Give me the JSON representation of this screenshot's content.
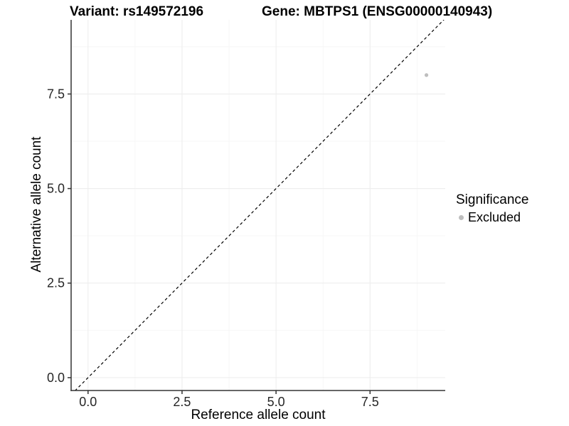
{
  "figure": {
    "title_left": "Variant: rs149572196",
    "title_right": "Gene: MBTPS1 (ENSG00000140943)"
  },
  "axes": {
    "x_label": "Reference allele count",
    "y_label": "Alternative allele count"
  },
  "legend": {
    "title": "Significance",
    "items": [
      {
        "label": "Excluded",
        "color": "#bebebe",
        "marker": "circle"
      }
    ]
  },
  "colors": {
    "point": "#bebebe",
    "grid_major": "#ececec",
    "grid_minor": "#f5f5f5",
    "axis_line": "#333333",
    "tick_mark": "#333333",
    "dashed_line": "#000000"
  },
  "chart_data": {
    "type": "scatter",
    "title": "Variant: rs149572196 | Gene: MBTPS1 (ENSG00000140943)",
    "xlabel": "Reference allele count",
    "ylabel": "Alternative allele count",
    "xlim": [
      -0.45,
      9.5
    ],
    "ylim": [
      -0.34,
      9.46
    ],
    "x_ticks": [
      0.0,
      2.5,
      5.0,
      7.5
    ],
    "y_ticks": [
      0.0,
      2.5,
      5.0,
      7.5
    ],
    "x_tick_labels": [
      "0.0",
      "2.5",
      "5.0",
      "7.5"
    ],
    "y_tick_labels": [
      "0.0",
      "2.5",
      "5.0",
      "7.5"
    ],
    "x_minor_ticks": [
      1.25,
      3.75,
      6.25,
      8.75
    ],
    "y_minor_ticks": [
      1.25,
      3.75,
      6.25,
      8.75
    ],
    "grid": true,
    "legend_position": "right",
    "series": [
      {
        "name": "Excluded",
        "color": "#bebebe",
        "points": [
          {
            "x": 9,
            "y": 8
          }
        ]
      }
    ],
    "reference_line": {
      "type": "abline",
      "slope": 1,
      "intercept": 0,
      "style": "dashed",
      "color": "#000000"
    }
  }
}
